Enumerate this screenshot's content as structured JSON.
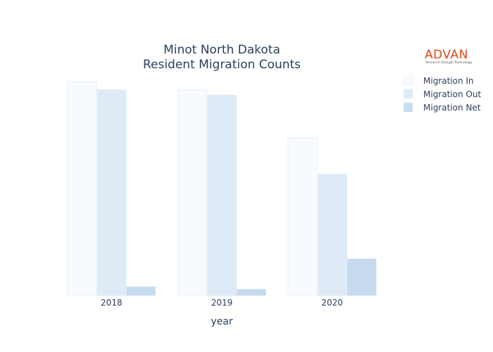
{
  "chart_data": {
    "type": "bar",
    "title_line1": "Minot North Dakota",
    "title_line2": "Resident Migration Counts",
    "xlabel": "year",
    "ylabel": "",
    "categories": [
      "2018",
      "2019",
      "2020"
    ],
    "series": [
      {
        "name": "Migration In",
        "values": [
          8000,
          7700,
          5900
        ],
        "color": "#f7fbff"
      },
      {
        "name": "Migration Out",
        "values": [
          7700,
          7500,
          4550
        ],
        "color": "#deebf7"
      },
      {
        "name": "Migration Net",
        "values": [
          340,
          250,
          1380
        ],
        "color": "#c6dbef"
      }
    ],
    "ylim": [
      0,
      8000
    ],
    "grid": false,
    "legend_position": "top-right"
  },
  "logo": {
    "name": "ADVAN",
    "tagline": "Research through Technology"
  }
}
